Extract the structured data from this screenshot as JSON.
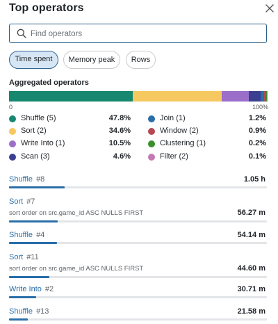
{
  "panel": {
    "title": "Top operators"
  },
  "search": {
    "placeholder": "Find operators",
    "value": ""
  },
  "tabs": [
    {
      "label": "Time spent",
      "active": true
    },
    {
      "label": "Memory peak",
      "active": false
    },
    {
      "label": "Rows",
      "active": false
    }
  ],
  "aggregated": {
    "label": "Aggregated operators",
    "axis_min": "0",
    "axis_max": "100%",
    "segments": [
      {
        "name": "Shuffle (5)",
        "value": "47.8%",
        "percent": 47.8,
        "color": "#17876f"
      },
      {
        "name": "Sort (2)",
        "value": "34.6%",
        "percent": 34.6,
        "color": "#f6c860"
      },
      {
        "name": "Write Into (1)",
        "value": "10.5%",
        "percent": 10.5,
        "color": "#9b6fc9"
      },
      {
        "name": "Scan (3)",
        "value": "4.6%",
        "percent": 4.6,
        "color": "#3a3f8f"
      },
      {
        "name": "Join (1)",
        "value": "1.2%",
        "percent": 1.2,
        "color": "#2a6ea8"
      },
      {
        "name": "Window (2)",
        "value": "0.9%",
        "percent": 0.9,
        "color": "#b54854"
      },
      {
        "name": "Clustering (1)",
        "value": "0.2%",
        "percent": 0.2,
        "color": "#3a8f2a"
      },
      {
        "name": "Filter (2)",
        "value": "0.1%",
        "percent": 0.1,
        "color": "#c47ab3"
      }
    ]
  },
  "operators": [
    {
      "name": "Shuffle",
      "id": "#8",
      "detail": "",
      "value": "1.05 h",
      "fraction": 0.215
    },
    {
      "name": "Sort",
      "id": "#7",
      "detail": "sort order on src.game_id ASC NULLS FIRST",
      "value": "56.27 m",
      "fraction": 0.19
    },
    {
      "name": "Shuffle",
      "id": "#4",
      "detail": "",
      "value": "54.14 m",
      "fraction": 0.185
    },
    {
      "name": "Sort",
      "id": "#11",
      "detail": "sort order on src.game_id ASC NULLS FIRST",
      "value": "44.60 m",
      "fraction": 0.155
    },
    {
      "name": "Write Into",
      "id": "#2",
      "detail": "",
      "value": "30.71 m",
      "fraction": 0.105
    },
    {
      "name": "Shuffle",
      "id": "#13",
      "detail": "",
      "value": "21.58 m",
      "fraction": 0.074
    }
  ]
}
